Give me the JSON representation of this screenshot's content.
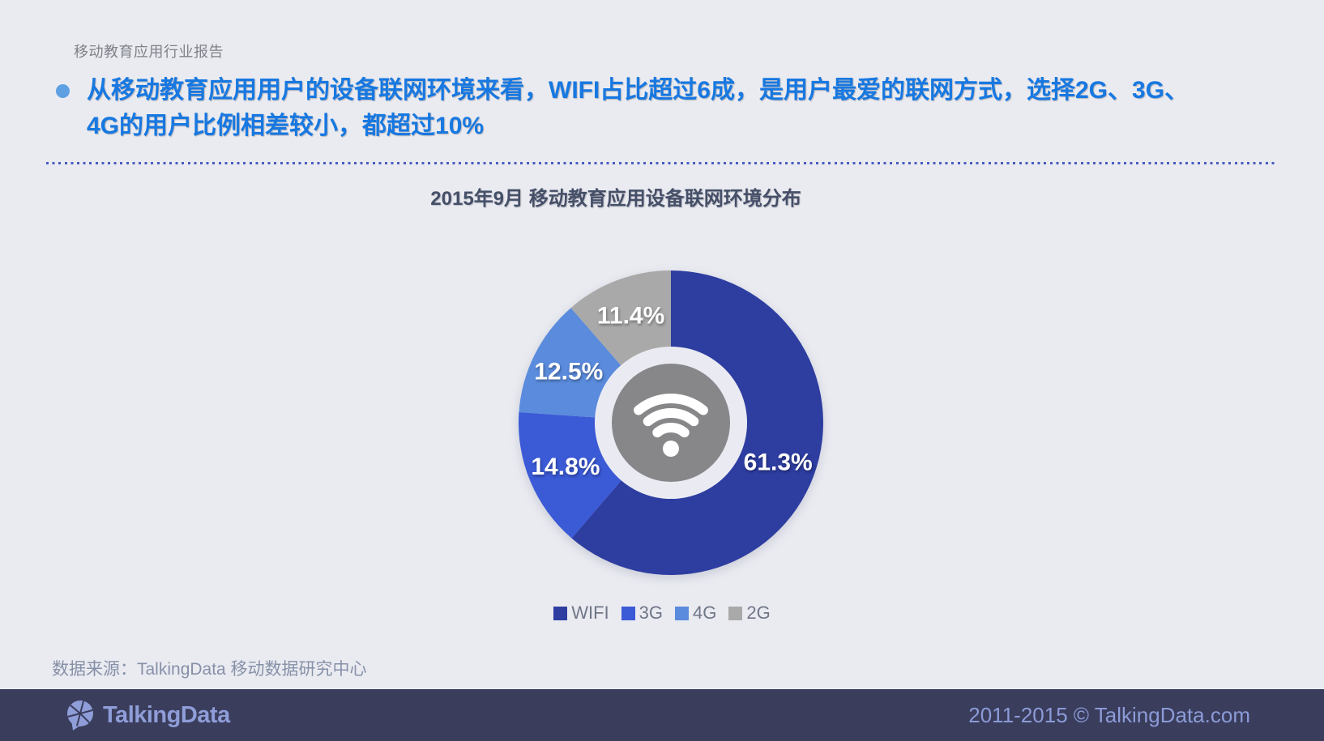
{
  "page": {
    "report_label": "移动教育应用行业报告",
    "headline_lines": [
      "从移动教育应用用户的设备联网环境来看，WIFI占比超过6成，是用户最爱的联网方式，选择2G、3G、",
      "4G的用户比例相差较小，都超过10%"
    ],
    "source": "数据来源：TalkingData 移动数据研究中心"
  },
  "chart_data": {
    "type": "pie",
    "donut": true,
    "title": "2015年9月  移动教育应用设备联网环境分布",
    "categories": [
      "WIFI",
      "3G",
      "4G",
      "2G"
    ],
    "values": [
      61.3,
      14.8,
      12.5,
      11.4
    ],
    "labels": [
      "61.3%",
      "14.8%",
      "12.5%",
      "11.4%"
    ],
    "colors": [
      "#2D3DA0",
      "#3B5AD6",
      "#5A8BDC",
      "#A9A9A9"
    ],
    "start_angle_deg": 0,
    "direction": "clockwise",
    "legend_position": "bottom",
    "center_icon": "wifi-icon",
    "center_icon_bg": "#87878A",
    "center_ring_color": "#EAEBF2"
  },
  "footer": {
    "brand": "TalkingData",
    "copyright": "2011-2015 © TalkingData.com"
  },
  "theme": {
    "background": "#EAEBF1",
    "headline_blue": "#1778E1",
    "bullet_blue": "#5FA0E2",
    "dotted_rule_blue": "#4A5CC0",
    "footer_bg": "#3A3D5C",
    "footer_text": "#8C9BD8"
  }
}
